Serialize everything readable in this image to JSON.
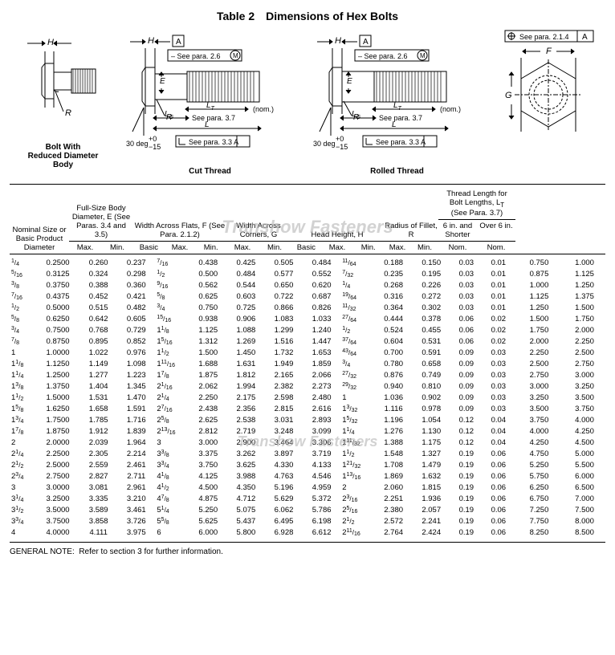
{
  "title": "Table 2 Dimensions of Hex Bolts",
  "watermark": "Transhow Fasteners",
  "captions": {
    "reduced": "Bolt With\nReduced Diameter\nBody",
    "cut": "Cut Thread",
    "rolled": "Rolled Thread"
  },
  "diagram_labels": {
    "h": "H",
    "a_box": "A",
    "see26": "See para. 2.6",
    "m": "M",
    "e": "E",
    "r": "R",
    "lt": "L",
    "lt_sub": "T",
    "nom": "(nom.)",
    "lg": "L",
    "lg_sub": "G",
    "see37": "See para. 3.7",
    "l": "L",
    "deg30": "30 deg",
    "tol": "+0\n−15",
    "see33": "See para. 3.3",
    "a": "A",
    "f": "F",
    "g": "G",
    "see214": "See para. 2.1.4"
  },
  "headers": {
    "nominal": "Nominal Size or Basic Product Diameter",
    "body": "Full-Size Body Diameter, E (See Paras. 3.4 and 3.5)",
    "flats": "Width Across Flats, F (See Para. 2.1.2)",
    "corners": "Width Across Corners, G",
    "head": "Head Height, H",
    "fillet": "Radius of Fillet, R",
    "thread": "Thread Length for Bolt Lengths, L",
    "thread_sub": "T",
    "thread_see": "(See Para. 3.7)",
    "max": "Max.",
    "min": "Min.",
    "basic": "Basic",
    "nom": "Nom.",
    "short": "6 in. and Shorter",
    "over": "Over 6 in."
  },
  "rows": [
    {
      "nf": "1/4",
      "nd": "0.2500",
      "eMx": "0.260",
      "eMn": "0.237",
      "fB": "7/16",
      "fMx": "0.438",
      "fMn": "0.425",
      "gMx": "0.505",
      "gMn": "0.484",
      "hB": "11/64",
      "hMx": "0.188",
      "hMn": "0.150",
      "rMx": "0.03",
      "rMn": "0.01",
      "tS": "0.750",
      "tO": "1.000"
    },
    {
      "nf": "5/16",
      "nd": "0.3125",
      "eMx": "0.324",
      "eMn": "0.298",
      "fB": "1/2",
      "fMx": "0.500",
      "fMn": "0.484",
      "gMx": "0.577",
      "gMn": "0.552",
      "hB": "7/32",
      "hMx": "0.235",
      "hMn": "0.195",
      "rMx": "0.03",
      "rMn": "0.01",
      "tS": "0.875",
      "tO": "1.125"
    },
    {
      "nf": "3/8",
      "nd": "0.3750",
      "eMx": "0.388",
      "eMn": "0.360",
      "fB": "9/16",
      "fMx": "0.562",
      "fMn": "0.544",
      "gMx": "0.650",
      "gMn": "0.620",
      "hB": "1/4",
      "hMx": "0.268",
      "hMn": "0.226",
      "rMx": "0.03",
      "rMn": "0.01",
      "tS": "1.000",
      "tO": "1.250"
    },
    {
      "nf": "7/16",
      "nd": "0.4375",
      "eMx": "0.452",
      "eMn": "0.421",
      "fB": "5/8",
      "fMx": "0.625",
      "fMn": "0.603",
      "gMx": "0.722",
      "gMn": "0.687",
      "hB": "19/64",
      "hMx": "0.316",
      "hMn": "0.272",
      "rMx": "0.03",
      "rMn": "0.01",
      "tS": "1.125",
      "tO": "1.375"
    },
    {
      "nf": "1/2",
      "nd": "0.5000",
      "eMx": "0.515",
      "eMn": "0.482",
      "fB": "3/4",
      "fMx": "0.750",
      "fMn": "0.725",
      "gMx": "0.866",
      "gMn": "0.826",
      "hB": "11/32",
      "hMx": "0.364",
      "hMn": "0.302",
      "rMx": "0.03",
      "rMn": "0.01",
      "tS": "1.250",
      "tO": "1.500"
    },
    {
      "nf": "5/8",
      "nd": "0.6250",
      "eMx": "0.642",
      "eMn": "0.605",
      "fB": "15/16",
      "fMx": "0.938",
      "fMn": "0.906",
      "gMx": "1.083",
      "gMn": "1.033",
      "hB": "27/64",
      "hMx": "0.444",
      "hMn": "0.378",
      "rMx": "0.06",
      "rMn": "0.02",
      "tS": "1.500",
      "tO": "1.750"
    },
    {
      "nf": "3/4",
      "nd": "0.7500",
      "eMx": "0.768",
      "eMn": "0.729",
      "fB": "1-1/8",
      "fMx": "1.125",
      "fMn": "1.088",
      "gMx": "1.299",
      "gMn": "1.240",
      "hB": "1/2",
      "hMx": "0.524",
      "hMn": "0.455",
      "rMx": "0.06",
      "rMn": "0.02",
      "tS": "1.750",
      "tO": "2.000"
    },
    {
      "nf": "7/8",
      "nd": "0.8750",
      "eMx": "0.895",
      "eMn": "0.852",
      "fB": "1-5/16",
      "fMx": "1.312",
      "fMn": "1.269",
      "gMx": "1.516",
      "gMn": "1.447",
      "hB": "37/64",
      "hMx": "0.604",
      "hMn": "0.531",
      "rMx": "0.06",
      "rMn": "0.02",
      "tS": "2.000",
      "tO": "2.250"
    },
    {
      "nf": "1",
      "nd": "1.0000",
      "eMx": "1.022",
      "eMn": "0.976",
      "fB": "1-1/2",
      "fMx": "1.500",
      "fMn": "1.450",
      "gMx": "1.732",
      "gMn": "1.653",
      "hB": "43/64",
      "hMx": "0.700",
      "hMn": "0.591",
      "rMx": "0.09",
      "rMn": "0.03",
      "tS": "2.250",
      "tO": "2.500"
    },
    {
      "nf": "1-1/8",
      "nd": "1.1250",
      "eMx": "1.149",
      "eMn": "1.098",
      "fB": "1-11/16",
      "fMx": "1.688",
      "fMn": "1.631",
      "gMx": "1.949",
      "gMn": "1.859",
      "hB": "3/4",
      "hMx": "0.780",
      "hMn": "0.658",
      "rMx": "0.09",
      "rMn": "0.03",
      "tS": "2.500",
      "tO": "2.750"
    },
    {
      "nf": "1-1/4",
      "nd": "1.2500",
      "eMx": "1.277",
      "eMn": "1.223",
      "fB": "1-7/8",
      "fMx": "1.875",
      "fMn": "1.812",
      "gMx": "2.165",
      "gMn": "2.066",
      "hB": "27/32",
      "hMx": "0.876",
      "hMn": "0.749",
      "rMx": "0.09",
      "rMn": "0.03",
      "tS": "2.750",
      "tO": "3.000"
    },
    {
      "nf": "1-3/8",
      "nd": "1.3750",
      "eMx": "1.404",
      "eMn": "1.345",
      "fB": "2-1/16",
      "fMx": "2.062",
      "fMn": "1.994",
      "gMx": "2.382",
      "gMn": "2.273",
      "hB": "29/32",
      "hMx": "0.940",
      "hMn": "0.810",
      "rMx": "0.09",
      "rMn": "0.03",
      "tS": "3.000",
      "tO": "3.250"
    },
    {
      "nf": "1-1/2",
      "nd": "1.5000",
      "eMx": "1.531",
      "eMn": "1.470",
      "fB": "2-1/4",
      "fMx": "2.250",
      "fMn": "2.175",
      "gMx": "2.598",
      "gMn": "2.480",
      "hB": "1",
      "hMx": "1.036",
      "hMn": "0.902",
      "rMx": "0.09",
      "rMn": "0.03",
      "tS": "3.250",
      "tO": "3.500"
    },
    {
      "nf": "1-5/8",
      "nd": "1.6250",
      "eMx": "1.658",
      "eMn": "1.591",
      "fB": "2-7/16",
      "fMx": "2.438",
      "fMn": "2.356",
      "gMx": "2.815",
      "gMn": "2.616",
      "hB": "1-3/32",
      "hMx": "1.116",
      "hMn": "0.978",
      "rMx": "0.09",
      "rMn": "0.03",
      "tS": "3.500",
      "tO": "3.750"
    },
    {
      "nf": "1-3/4",
      "nd": "1.7500",
      "eMx": "1.785",
      "eMn": "1.716",
      "fB": "2-5/8",
      "fMx": "2.625",
      "fMn": "2.538",
      "gMx": "3.031",
      "gMn": "2.893",
      "hB": "1-5/32",
      "hMx": "1.196",
      "hMn": "1.054",
      "rMx": "0.12",
      "rMn": "0.04",
      "tS": "3.750",
      "tO": "4.000"
    },
    {
      "nf": "1-7/8",
      "nd": "1.8750",
      "eMx": "1.912",
      "eMn": "1.839",
      "fB": "2-13/16",
      "fMx": "2.812",
      "fMn": "2.719",
      "gMx": "3.248",
      "gMn": "3.099",
      "hB": "1-1/4",
      "hMx": "1.276",
      "hMn": "1.130",
      "rMx": "0.12",
      "rMn": "0.04",
      "tS": "4.000",
      "tO": "4.250"
    },
    {
      "nf": "2",
      "nd": "2.0000",
      "eMx": "2.039",
      "eMn": "1.964",
      "fB": "3",
      "fMx": "3.000",
      "fMn": "2.900",
      "gMx": "3.464",
      "gMn": "3.306",
      "hB": "1-11/32",
      "hMx": "1.388",
      "hMn": "1.175",
      "rMx": "0.12",
      "rMn": "0.04",
      "tS": "4.250",
      "tO": "4.500"
    },
    {
      "nf": "2-1/4",
      "nd": "2.2500",
      "eMx": "2.305",
      "eMn": "2.214",
      "fB": "3-3/8",
      "fMx": "3.375",
      "fMn": "3.262",
      "gMx": "3.897",
      "gMn": "3.719",
      "hB": "1-1/2",
      "hMx": "1.548",
      "hMn": "1.327",
      "rMx": "0.19",
      "rMn": "0.06",
      "tS": "4.750",
      "tO": "5.000"
    },
    {
      "nf": "2-1/2",
      "nd": "2.5000",
      "eMx": "2.559",
      "eMn": "2.461",
      "fB": "3-3/4",
      "fMx": "3.750",
      "fMn": "3.625",
      "gMx": "4.330",
      "gMn": "4.133",
      "hB": "1-21/32",
      "hMx": "1.708",
      "hMn": "1.479",
      "rMx": "0.19",
      "rMn": "0.06",
      "tS": "5.250",
      "tO": "5.500"
    },
    {
      "nf": "2-3/4",
      "nd": "2.7500",
      "eMx": "2.827",
      "eMn": "2.711",
      "fB": "4-1/8",
      "fMx": "4.125",
      "fMn": "3.988",
      "gMx": "4.763",
      "gMn": "4.546",
      "hB": "1-13/16",
      "hMx": "1.869",
      "hMn": "1.632",
      "rMx": "0.19",
      "rMn": "0.06",
      "tS": "5.750",
      "tO": "6.000"
    },
    {
      "nf": "3",
      "nd": "3.0000",
      "eMx": "3.081",
      "eMn": "2.961",
      "fB": "4-1/2",
      "fMx": "4.500",
      "fMn": "4.350",
      "gMx": "5.196",
      "gMn": "4.959",
      "hB": "2",
      "hMx": "2.060",
      "hMn": "1.815",
      "rMx": "0.19",
      "rMn": "0.06",
      "tS": "6.250",
      "tO": "6.500"
    },
    {
      "nf": "3-1/4",
      "nd": "3.2500",
      "eMx": "3.335",
      "eMn": "3.210",
      "fB": "4-7/8",
      "fMx": "4.875",
      "fMn": "4.712",
      "gMx": "5.629",
      "gMn": "5.372",
      "hB": "2-3/16",
      "hMx": "2.251",
      "hMn": "1.936",
      "rMx": "0.19",
      "rMn": "0.06",
      "tS": "6.750",
      "tO": "7.000"
    },
    {
      "nf": "3-1/2",
      "nd": "3.5000",
      "eMx": "3.589",
      "eMn": "3.461",
      "fB": "5-1/4",
      "fMx": "5.250",
      "fMn": "5.075",
      "gMx": "6.062",
      "gMn": "5.786",
      "hB": "2-5/16",
      "hMx": "2.380",
      "hMn": "2.057",
      "rMx": "0.19",
      "rMn": "0.06",
      "tS": "7.250",
      "tO": "7.500"
    },
    {
      "nf": "3-3/4",
      "nd": "3.7500",
      "eMx": "3.858",
      "eMn": "3.726",
      "fB": "5-5/8",
      "fMx": "5.625",
      "fMn": "5.437",
      "gMx": "6.495",
      "gMn": "6.198",
      "hB": "2-1/2",
      "hMx": "2.572",
      "hMn": "2.241",
      "rMx": "0.19",
      "rMn": "0.06",
      "tS": "7.750",
      "tO": "8.000"
    },
    {
      "nf": "4",
      "nd": "4.0000",
      "eMx": "4.111",
      "eMn": "3.975",
      "fB": "6",
      "fMx": "6.000",
      "fMn": "5.800",
      "gMx": "6.928",
      "gMn": "6.612",
      "hB": "2-11/16",
      "hMx": "2.764",
      "hMn": "2.424",
      "rMx": "0.19",
      "rMn": "0.06",
      "tS": "8.250",
      "tO": "8.500"
    }
  ],
  "note_label": "GENERAL NOTE:",
  "note_text": "Refer to section 3 for further information.",
  "col_widths": {
    "nf": 28,
    "nd": 46,
    "eMx": 40,
    "eMn": 40,
    "fB": 36,
    "fMx": 40,
    "fMn": 40,
    "gMx": 40,
    "gMn": 40,
    "hB": 36,
    "hMx": 40,
    "hMn": 40,
    "rMx": 34,
    "rMn": 34,
    "tS": 52,
    "tO": 44
  }
}
